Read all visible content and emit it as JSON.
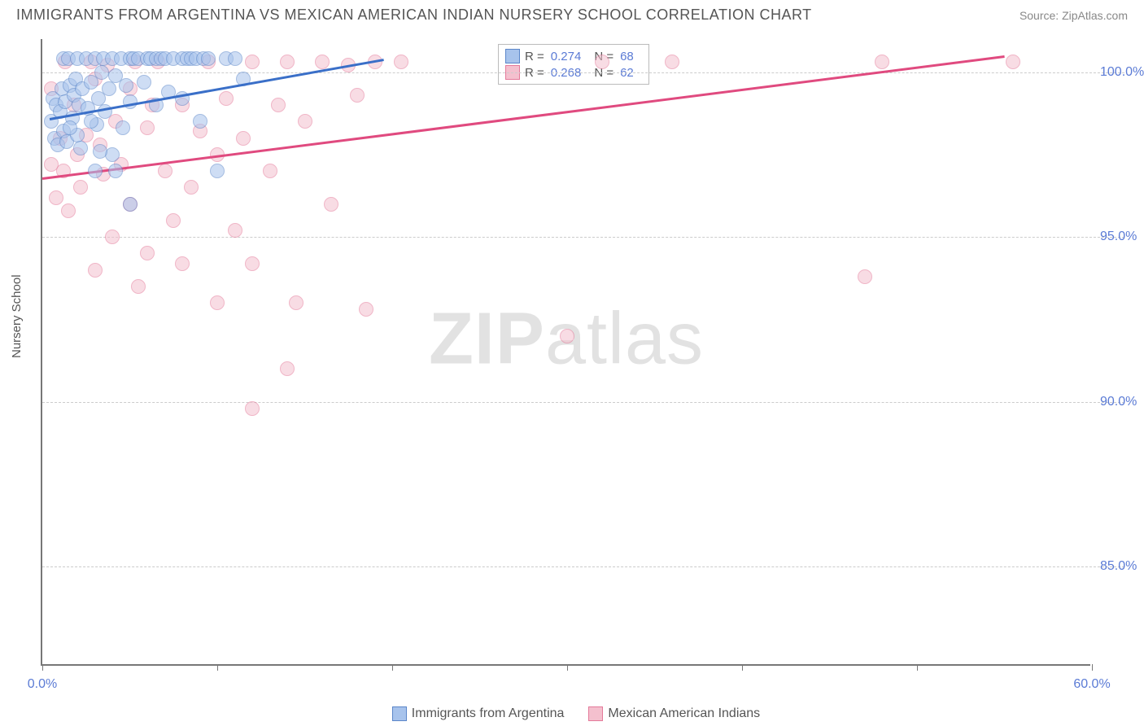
{
  "title": "IMMIGRANTS FROM ARGENTINA VS MEXICAN AMERICAN INDIAN NURSERY SCHOOL CORRELATION CHART",
  "source_label": "Source: ZipAtlas.com",
  "y_axis_label": "Nursery School",
  "watermark_a": "ZIP",
  "watermark_b": "atlas",
  "chart": {
    "type": "scatter",
    "background_color": "#ffffff",
    "grid_color": "#cccccc",
    "axis_color": "#777777",
    "xlim": [
      0,
      60
    ],
    "ylim": [
      82,
      101
    ],
    "x_ticks": [
      0,
      10,
      20,
      30,
      40,
      50,
      60
    ],
    "x_tick_labels": {
      "0": "0.0%",
      "60": "60.0%"
    },
    "y_ticks": [
      85,
      90,
      95,
      100
    ],
    "y_tick_labels": {
      "85": "85.0%",
      "90": "90.0%",
      "95": "95.0%",
      "100": "100.0%"
    },
    "marker_radius": 9,
    "marker_opacity": 0.55,
    "label_color": "#5b7bd5",
    "axis_label_color": "#555555",
    "title_color": "#555555",
    "title_fontsize": 18,
    "tick_fontsize": 16
  },
  "series": [
    {
      "name": "Immigrants from Argentina",
      "fill_color": "#a7c3ec",
      "stroke_color": "#5b86c9",
      "line_color": "#3a6fc8",
      "R": "0.274",
      "N": "68",
      "trend": {
        "x1": 0.4,
        "y1": 98.6,
        "x2": 19.5,
        "y2": 100.4
      },
      "points": [
        [
          0.5,
          98.5
        ],
        [
          0.6,
          99.2
        ],
        [
          0.7,
          98.0
        ],
        [
          0.8,
          99.0
        ],
        [
          0.9,
          97.8
        ],
        [
          1.0,
          98.8
        ],
        [
          1.1,
          99.5
        ],
        [
          1.2,
          100.4
        ],
        [
          1.2,
          98.2
        ],
        [
          1.3,
          99.1
        ],
        [
          1.4,
          97.9
        ],
        [
          1.5,
          100.4
        ],
        [
          1.6,
          99.6
        ],
        [
          1.7,
          98.6
        ],
        [
          1.8,
          99.3
        ],
        [
          1.9,
          99.8
        ],
        [
          2.0,
          100.4
        ],
        [
          2.0,
          98.1
        ],
        [
          2.1,
          99.0
        ],
        [
          2.2,
          97.7
        ],
        [
          2.3,
          99.5
        ],
        [
          2.5,
          100.4
        ],
        [
          2.6,
          98.9
        ],
        [
          2.8,
          99.7
        ],
        [
          3.0,
          100.4
        ],
        [
          3.0,
          97.0
        ],
        [
          3.1,
          98.4
        ],
        [
          3.2,
          99.2
        ],
        [
          3.4,
          100.0
        ],
        [
          3.5,
          100.4
        ],
        [
          3.6,
          98.8
        ],
        [
          3.8,
          99.5
        ],
        [
          4.0,
          100.4
        ],
        [
          4.0,
          97.5
        ],
        [
          4.2,
          99.9
        ],
        [
          4.5,
          100.4
        ],
        [
          4.6,
          98.3
        ],
        [
          4.8,
          99.6
        ],
        [
          5.0,
          100.4
        ],
        [
          5.0,
          99.1
        ],
        [
          5.2,
          100.4
        ],
        [
          5.5,
          100.4
        ],
        [
          5.8,
          99.7
        ],
        [
          6.0,
          100.4
        ],
        [
          6.2,
          100.4
        ],
        [
          6.5,
          99.0
        ],
        [
          6.5,
          100.4
        ],
        [
          6.8,
          100.4
        ],
        [
          7.0,
          100.4
        ],
        [
          7.2,
          99.4
        ],
        [
          7.5,
          100.4
        ],
        [
          8.0,
          100.4
        ],
        [
          8.0,
          99.2
        ],
        [
          8.3,
          100.4
        ],
        [
          8.5,
          100.4
        ],
        [
          8.8,
          100.4
        ],
        [
          9.0,
          98.5
        ],
        [
          9.2,
          100.4
        ],
        [
          9.5,
          100.4
        ],
        [
          10.0,
          97.0
        ],
        [
          10.5,
          100.4
        ],
        [
          11.0,
          100.4
        ],
        [
          11.5,
          99.8
        ],
        [
          5.0,
          96.0
        ],
        [
          4.2,
          97.0
        ],
        [
          2.8,
          98.5
        ],
        [
          1.6,
          98.3
        ],
        [
          3.3,
          97.6
        ]
      ]
    },
    {
      "name": "Mexican American Indians",
      "fill_color": "#f4c0ce",
      "stroke_color": "#e47a9a",
      "line_color": "#e04a7f",
      "R": "0.268",
      "N": "62",
      "trend": {
        "x1": 0.0,
        "y1": 96.8,
        "x2": 55.0,
        "y2": 100.5
      },
      "points": [
        [
          0.5,
          97.2
        ],
        [
          0.5,
          99.5
        ],
        [
          0.8,
          96.2
        ],
        [
          1.0,
          98.0
        ],
        [
          1.2,
          97.0
        ],
        [
          1.3,
          100.3
        ],
        [
          1.5,
          95.8
        ],
        [
          1.8,
          99.0
        ],
        [
          2.0,
          97.5
        ],
        [
          2.2,
          96.5
        ],
        [
          2.5,
          98.1
        ],
        [
          2.8,
          100.3
        ],
        [
          3.0,
          94.0
        ],
        [
          3.0,
          99.8
        ],
        [
          3.3,
          97.8
        ],
        [
          3.5,
          96.9
        ],
        [
          3.7,
          100.2
        ],
        [
          4.0,
          95.0
        ],
        [
          4.2,
          98.5
        ],
        [
          4.5,
          97.2
        ],
        [
          5.0,
          96.0
        ],
        [
          5.0,
          99.5
        ],
        [
          5.3,
          100.3
        ],
        [
          5.5,
          93.5
        ],
        [
          6.0,
          98.3
        ],
        [
          6.0,
          94.5
        ],
        [
          6.3,
          99.0
        ],
        [
          6.6,
          100.3
        ],
        [
          7.0,
          97.0
        ],
        [
          7.5,
          95.5
        ],
        [
          8.0,
          99.0
        ],
        [
          8.0,
          94.2
        ],
        [
          8.5,
          96.5
        ],
        [
          9.0,
          98.2
        ],
        [
          9.5,
          100.3
        ],
        [
          10.0,
          97.5
        ],
        [
          10.0,
          93.0
        ],
        [
          10.5,
          99.2
        ],
        [
          11.0,
          95.2
        ],
        [
          11.5,
          98.0
        ],
        [
          12.0,
          100.3
        ],
        [
          12.0,
          94.2
        ],
        [
          13.0,
          97.0
        ],
        [
          13.5,
          99.0
        ],
        [
          14.0,
          100.3
        ],
        [
          14.5,
          93.0
        ],
        [
          15.0,
          98.5
        ],
        [
          16.0,
          100.3
        ],
        [
          16.5,
          96.0
        ],
        [
          17.5,
          100.2
        ],
        [
          18.0,
          99.3
        ],
        [
          18.5,
          92.8
        ],
        [
          19.0,
          100.3
        ],
        [
          20.5,
          100.3
        ],
        [
          12.0,
          89.8
        ],
        [
          14.0,
          91.0
        ],
        [
          30.0,
          92.0
        ],
        [
          32.0,
          100.3
        ],
        [
          36.0,
          100.3
        ],
        [
          47.0,
          93.8
        ],
        [
          48.0,
          100.3
        ],
        [
          55.5,
          100.3
        ]
      ]
    }
  ],
  "bottom_legend": [
    {
      "swatch_fill": "#a7c3ec",
      "swatch_stroke": "#5b86c9",
      "label": "Immigrants from Argentina"
    },
    {
      "swatch_fill": "#f4c0ce",
      "swatch_stroke": "#e47a9a",
      "label": "Mexican American Indians"
    }
  ]
}
